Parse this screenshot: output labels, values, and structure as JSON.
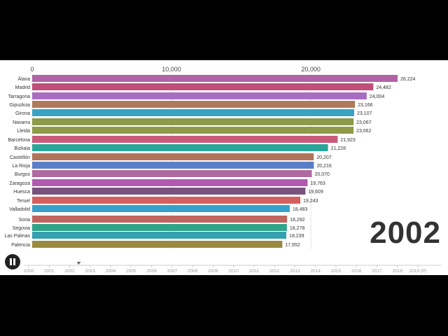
{
  "chart_data": {
    "type": "bar",
    "orientation": "horizontal",
    "current_year": "2002",
    "axis_ticks": [
      0,
      10000,
      20000
    ],
    "axis_tick_labels": [
      "0",
      "10,000",
      "20,000"
    ],
    "xlim": [
      0,
      26224
    ],
    "categories": [
      "Álava",
      "Madrid",
      "Tarragona",
      "Gipuzkoa",
      "Girona",
      "Navarra",
      "Lleida",
      "Barcelona",
      "Bizkaia",
      "Castellón",
      "La Rioja",
      "Burgos",
      "Zaragoza",
      "Huesca",
      "Teruel",
      "Valladolid",
      "Soria",
      "Segovia",
      "Las Palmas",
      "Palencia"
    ],
    "values": [
      26224,
      24482,
      24004,
      23166,
      23107,
      23067,
      23062,
      21923,
      21228,
      20207,
      20216,
      20070,
      19763,
      19609,
      19243,
      18483,
      18292,
      18278,
      18239,
      17952
    ],
    "value_labels": [
      "26,224",
      "24,482",
      "24,004",
      "23,166",
      "23,107",
      "23,067",
      "23,062",
      "21,923",
      "21,228",
      "20,207",
      "20,216",
      "20,070",
      "19,763",
      "19,609",
      "19,243",
      "18,483",
      "18,292",
      "18,278",
      "18,239",
      "17,952"
    ],
    "colors": [
      "#b262a6",
      "#c0507a",
      "#a86cc1",
      "#b07a5a",
      "#3aa3c3",
      "#8c9a4a",
      "#8e9a48",
      "#c85a7a",
      "#2aa59a",
      "#b0745a",
      "#5a7ec8",
      "#b06aa0",
      "#b05ab0",
      "#7a527e",
      "#d4605e",
      "#36a0c8",
      "#c0645e",
      "#2ea58a",
      "#34a0b0",
      "#9a8a40"
    ],
    "timeline_labels": [
      "2000",
      "2001",
      "2002",
      "2003",
      "2004",
      "2005",
      "2006",
      "2007",
      "2008",
      "2009",
      "2010",
      "2011",
      "2012",
      "2013",
      "2014",
      "2015",
      "2016",
      "2017",
      "2018",
      "2019 (P)"
    ],
    "timeline_current_index": 2
  }
}
